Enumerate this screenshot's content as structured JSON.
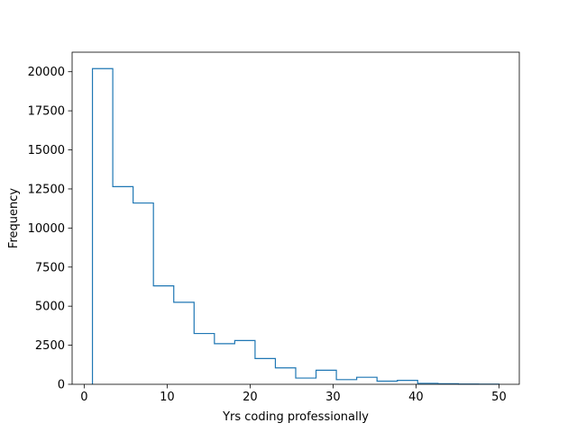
{
  "chart_data": {
    "type": "histogram",
    "title": "",
    "xlabel": "Yrs coding professionally",
    "ylabel": "Frequency",
    "xlim": [
      -1.45,
      52.45
    ],
    "ylim": [
      0,
      21250
    ],
    "xticks": [
      0,
      10,
      20,
      30,
      40,
      50
    ],
    "yticks": [
      0,
      2500,
      5000,
      7500,
      10000,
      12500,
      15000,
      17500,
      20000
    ],
    "grid": false,
    "legend": "none",
    "bin_edges": [
      1.0,
      3.45,
      5.9,
      8.35,
      10.8,
      13.25,
      15.7,
      18.15,
      20.6,
      23.05,
      25.5,
      27.95,
      30.4,
      32.85,
      35.3,
      37.75,
      40.2,
      42.65,
      45.1,
      47.55,
      50.0
    ],
    "counts": [
      20200,
      12650,
      11600,
      6300,
      5250,
      3250,
      2600,
      2800,
      1650,
      1050,
      400,
      900,
      300,
      450,
      200,
      250,
      60,
      40,
      15,
      10
    ],
    "color": "#1f77b4"
  }
}
